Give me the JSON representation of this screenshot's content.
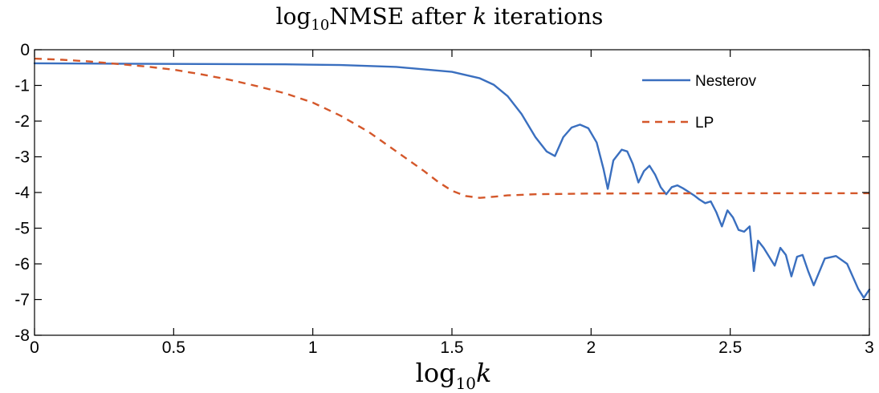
{
  "chart_data": {
    "type": "line",
    "title": {
      "pre": "log",
      "sub": "10",
      "mid": "NMSE after ",
      "var": "k",
      "post": " iterations"
    },
    "xlabel": {
      "pre": "log",
      "sub": "10",
      "var": "k"
    },
    "ylabel": "",
    "xlim": [
      0,
      3
    ],
    "ylim": [
      -8,
      0
    ],
    "xticks": [
      0,
      0.5,
      1,
      1.5,
      2,
      2.5,
      3
    ],
    "xtick_labels": [
      "0",
      "0.5",
      "1",
      "1.5",
      "2",
      "2.5",
      "3"
    ],
    "yticks": [
      0,
      -1,
      -2,
      -3,
      -4,
      -5,
      -6,
      -7,
      -8
    ],
    "ytick_labels": [
      "0",
      "-1",
      "-2",
      "-3",
      "-4",
      "-5",
      "-6",
      "-7",
      "-8"
    ],
    "grid": false,
    "legend_position": "top-right",
    "series": [
      {
        "name": "Nesterov",
        "color": "#3a6fbf",
        "style": "solid",
        "x": [
          0,
          0.3,
          0.6,
          0.9,
          1.1,
          1.3,
          1.5,
          1.6,
          1.65,
          1.7,
          1.75,
          1.8,
          1.84,
          1.87,
          1.9,
          1.93,
          1.96,
          1.99,
          2.02,
          2.045,
          2.06,
          2.08,
          2.11,
          2.13,
          2.15,
          2.17,
          2.19,
          2.21,
          2.23,
          2.25,
          2.27,
          2.29,
          2.31,
          2.33,
          2.35,
          2.37,
          2.39,
          2.41,
          2.43,
          2.45,
          2.47,
          2.49,
          2.51,
          2.53,
          2.55,
          2.57,
          2.585,
          2.6,
          2.62,
          2.64,
          2.66,
          2.68,
          2.7,
          2.72,
          2.74,
          2.76,
          2.78,
          2.8,
          2.84,
          2.88,
          2.92,
          2.96,
          2.98,
          3.0
        ],
        "y": [
          -0.38,
          -0.39,
          -0.4,
          -0.41,
          -0.43,
          -0.48,
          -0.62,
          -0.8,
          -0.98,
          -1.3,
          -1.8,
          -2.45,
          -2.85,
          -2.98,
          -2.45,
          -2.18,
          -2.1,
          -2.2,
          -2.6,
          -3.35,
          -3.9,
          -3.1,
          -2.8,
          -2.85,
          -3.2,
          -3.72,
          -3.4,
          -3.25,
          -3.5,
          -3.85,
          -4.05,
          -3.85,
          -3.8,
          -3.88,
          -3.98,
          -4.08,
          -4.2,
          -4.3,
          -4.25,
          -4.55,
          -4.95,
          -4.5,
          -4.7,
          -5.05,
          -5.1,
          -4.95,
          -6.2,
          -5.35,
          -5.55,
          -5.8,
          -6.05,
          -5.55,
          -5.75,
          -6.35,
          -5.8,
          -5.75,
          -6.2,
          -6.6,
          -5.85,
          -5.78,
          -6.0,
          -6.7,
          -6.95,
          -6.72
        ]
      },
      {
        "name": "LP",
        "color": "#d4572a",
        "style": "dashed",
        "x": [
          0,
          0.1,
          0.2,
          0.3,
          0.4,
          0.5,
          0.6,
          0.7,
          0.8,
          0.9,
          1.0,
          1.1,
          1.2,
          1.3,
          1.4,
          1.45,
          1.5,
          1.55,
          1.6,
          1.65,
          1.7,
          1.8,
          2.0,
          2.5,
          3.0
        ],
        "y": [
          -0.25,
          -0.28,
          -0.33,
          -0.4,
          -0.47,
          -0.56,
          -0.69,
          -0.84,
          -1.02,
          -1.22,
          -1.48,
          -1.85,
          -2.3,
          -2.85,
          -3.4,
          -3.7,
          -3.95,
          -4.1,
          -4.15,
          -4.12,
          -4.08,
          -4.05,
          -4.03,
          -4.02,
          -4.02
        ]
      }
    ]
  }
}
